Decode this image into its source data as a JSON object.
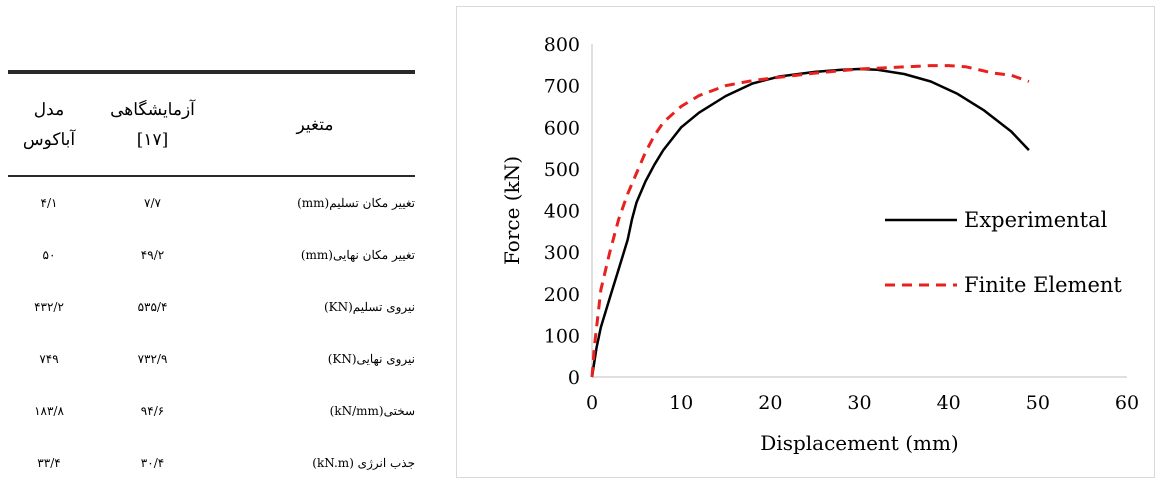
{
  "table": {
    "headers": {
      "variable": "متغیر",
      "experimental_line1": "آزمایشگاهی",
      "experimental_line2": "[۱۷]",
      "model_line1": "مدل",
      "model_line2": "آباکوس"
    },
    "rows": [
      {
        "variable": "تغییر مکان تسلیم(mm)",
        "experimental": "۷/۷",
        "model": "۴/۱"
      },
      {
        "variable": "تغییر مکان نهایی(mm)",
        "experimental": "۴۹/۲",
        "model": "۵۰"
      },
      {
        "variable": "نیروی تسلیم(KN)",
        "experimental": "۵۳۵/۴",
        "model": "۴۳۲/۲"
      },
      {
        "variable": "نیروی نهایی(KN)",
        "experimental": "۷۳۲/۹",
        "model": "۷۴۹"
      },
      {
        "variable": "سختی(kN/mm)",
        "experimental": "۹۴/۶",
        "model": "۱۸۳/۸"
      },
      {
        "variable": "جذب انرژی (kN.m)",
        "experimental": "۳۰/۴",
        "model": "۳۳/۴"
      }
    ]
  },
  "chart_data": {
    "type": "line",
    "xlabel": "Displacement (mm)",
    "ylabel": "Force (kN)",
    "xlim": [
      0,
      60
    ],
    "ylim": [
      0,
      800
    ],
    "xticks": [
      0,
      10,
      20,
      30,
      40,
      50,
      60
    ],
    "yticks": [
      0,
      100,
      200,
      300,
      400,
      500,
      600,
      700,
      800
    ],
    "grid": false,
    "legend_position": "right",
    "series": [
      {
        "name": "Experimental",
        "color": "#000000",
        "dash": "solid",
        "x": [
          0,
          0.5,
          1,
          2,
          3,
          4,
          4.5,
          5,
          6,
          7,
          8,
          10,
          12,
          15,
          18,
          21,
          25,
          28,
          30,
          32,
          35,
          38,
          41,
          44,
          47,
          49
        ],
        "y": [
          0,
          70,
          120,
          190,
          260,
          330,
          380,
          420,
          470,
          510,
          545,
          600,
          635,
          675,
          705,
          722,
          733,
          738,
          740,
          738,
          728,
          710,
          680,
          640,
          590,
          545
        ]
      },
      {
        "name": "Finite Element",
        "color": "#e8201e",
        "dash": "dashed",
        "x": [
          0,
          0.3,
          1,
          2,
          3,
          4,
          5,
          6,
          7,
          8,
          10,
          12,
          15,
          18,
          21,
          25,
          30,
          35,
          38,
          40,
          42,
          45,
          47,
          49
        ],
        "y": [
          0,
          80,
          210,
          300,
          380,
          440,
          490,
          540,
          580,
          612,
          650,
          676,
          700,
          712,
          720,
          730,
          740,
          745,
          748,
          748,
          745,
          730,
          725,
          710
        ]
      }
    ]
  }
}
